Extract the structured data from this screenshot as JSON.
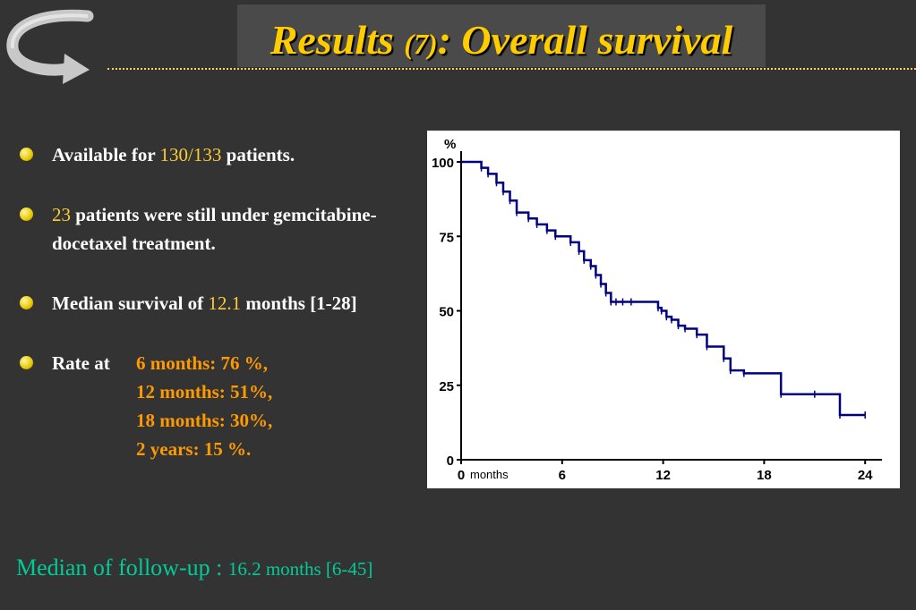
{
  "slide": {
    "title_main": "Results",
    "title_number": "(7)",
    "title_rest": ": Overall survival",
    "nav_icon": "curved-back-arrow-icon"
  },
  "bullets": [
    {
      "pre": "Available for ",
      "highlight": "130/133",
      "post": " patients."
    },
    {
      "highlight": "23",
      "post": " patients were still under gemcitabine-docetaxel treatment."
    },
    {
      "pre": "Median survival of ",
      "highlight": "12.1",
      "post": " months [1-28]"
    },
    {
      "label": "Rate at",
      "rates": [
        "6 months: 76 %,",
        "12 months: 51%,",
        "18 months: 30%,",
        "2 years: 15 %."
      ]
    }
  ],
  "footer": {
    "label": "Median of follow-up : ",
    "value": "16.2 months [6-45]"
  },
  "colors": {
    "background": "#333333",
    "title": "#ffcc00",
    "highlight": "#ffcc33",
    "rates": "#ff9900",
    "footer": "#00cc99",
    "curve": "#000080"
  },
  "chart_data": {
    "type": "line",
    "ylabel": "%",
    "xlabel": "months",
    "x_ticks": [
      0,
      6,
      12,
      18,
      24
    ],
    "x_tick_labels": [
      "0",
      "6",
      "12",
      "18",
      "24"
    ],
    "y_ticks": [
      0,
      25,
      50,
      75,
      100
    ],
    "xlim": [
      0,
      25
    ],
    "ylim": [
      0,
      100
    ],
    "series": [
      {
        "step": true,
        "x": [
          0,
          1.2,
          1.6,
          2.1,
          2.5,
          2.9,
          3.3,
          4.0,
          4.5,
          5.1,
          5.6,
          6.5,
          7.0,
          7.3,
          7.7,
          8.0,
          8.3,
          8.6,
          8.9,
          9.2,
          9.6,
          10.1,
          11.7,
          11.9,
          12.2,
          12.5,
          12.9,
          13.3,
          14.0,
          14.6,
          15.6,
          16.0,
          16.8,
          19.0,
          21.0,
          22.5,
          24.0
        ],
        "y": [
          100,
          98,
          96,
          93,
          90,
          87,
          83,
          81,
          79,
          77,
          75,
          73,
          70,
          67,
          65,
          62,
          59,
          56,
          53,
          53,
          53,
          53,
          51,
          50,
          48,
          47,
          45,
          44,
          42,
          38,
          34,
          30,
          29,
          22,
          22,
          15,
          15
        ]
      }
    ]
  }
}
